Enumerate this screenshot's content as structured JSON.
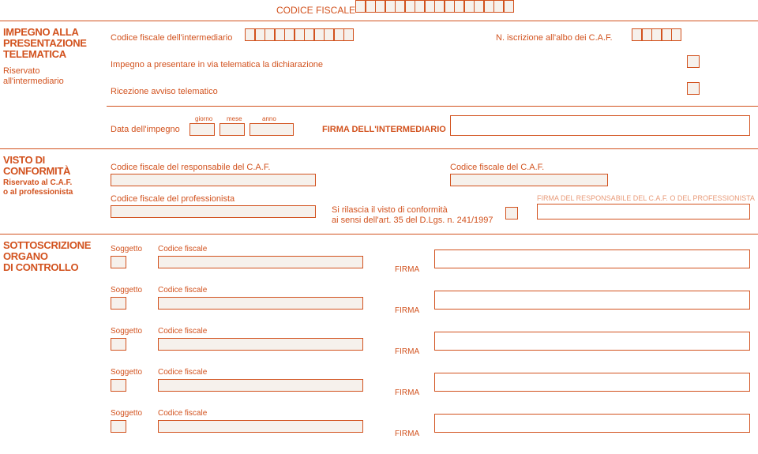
{
  "header": {
    "codice_fiscale_label": "CODICE FISCALE"
  },
  "impegno": {
    "title_line1": "IMPEGNO ALLA",
    "title_line2": "PRESENTAZIONE",
    "title_line3": "TELEMATICA",
    "sub_line1": "Riservato",
    "sub_line2": "all'intermediario",
    "cf_intermediario": "Codice fiscale dell'intermediario",
    "n_iscrizione": "N. iscrizione all'albo dei C.A.F.",
    "impegno_dich": "Impegno a presentare in via telematica la dichiarazione",
    "ricezione": "Ricezione avviso telematico",
    "data_impegno": "Data dell'impegno",
    "giorno": "giorno",
    "mese": "mese",
    "anno": "anno",
    "firma_intermediario": "FIRMA DELL'INTERMEDIARIO"
  },
  "visto": {
    "title_line1": "VISTO DI",
    "title_line2": "CONFORMITÀ",
    "sub_line1": "Riservato al C.A.F.",
    "sub_line2": "o al professionista",
    "cf_responsabile": "Codice fiscale del responsabile del C.A.F.",
    "cf_caf": "Codice fiscale del C.A.F.",
    "cf_professionista": "Codice fiscale del professionista",
    "rilascio1": "Si rilascia il visto di conformità",
    "rilascio2": "ai sensi dell'art. 35 del D.Lgs. n. 241/1997",
    "firma_del": "FIRMA DEL RESPONSABILE DEL C.A.F. O DEL PROFESSIONISTA"
  },
  "sottoscrizione": {
    "title_line1": "SOTTOSCRIZIONE",
    "title_line2": "ORGANO",
    "title_line3": "DI CONTROLLO",
    "rows": [
      {
        "soggetto": "Soggetto",
        "cf": "Codice fiscale",
        "firma": "FIRMA"
      },
      {
        "soggetto": "Soggetto",
        "cf": "Codice fiscale",
        "firma": "FIRMA"
      },
      {
        "soggetto": "Soggetto",
        "cf": "Codice fiscale",
        "firma": "FIRMA"
      },
      {
        "soggetto": "Soggetto",
        "cf": "Codice fiscale",
        "firma": "FIRMA"
      },
      {
        "soggetto": "Soggetto",
        "cf": "Codice fiscale",
        "firma": "FIRMA"
      }
    ]
  },
  "style": {
    "brand_color": "#d2521e",
    "light_color": "#e89a78",
    "box_bg": "#f6f1ec",
    "cf_cell_count_header": 16,
    "cf_cell_count_intermed": 11,
    "cf_cell_count_iscr": 5,
    "date_cells": {
      "g": 2,
      "m": 2,
      "a": 4
    }
  }
}
